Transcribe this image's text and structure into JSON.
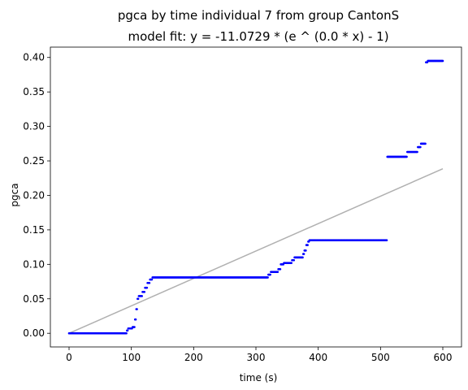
{
  "chart_data": {
    "type": "scatter",
    "title": "pgca by time individual 7 from group CantonS",
    "subtitle": "model fit: y = -11.0729 * (e ^ (0.0 * x) - 1)",
    "xlabel": "time (s)",
    "ylabel": "pgca",
    "xlim": [
      -30,
      630
    ],
    "ylim": [
      -0.0198,
      0.415
    ],
    "x_ticks": [
      0,
      100,
      200,
      300,
      400,
      500,
      600
    ],
    "y_ticks": [
      0.0,
      0.05,
      0.1,
      0.15,
      0.2,
      0.25,
      0.3,
      0.35,
      0.4
    ],
    "x_tick_labels": [
      "0",
      "100",
      "200",
      "300",
      "400",
      "500",
      "600"
    ],
    "y_tick_labels": [
      "0.00",
      "0.05",
      "0.10",
      "0.15",
      "0.20",
      "0.25",
      "0.30",
      "0.35",
      "0.40"
    ],
    "grid": false,
    "series": [
      {
        "kind": "points",
        "color": "#0000ff",
        "steps": [
          [
            0,
            0.0
          ],
          [
            93,
            0.004
          ],
          [
            95,
            0.007
          ],
          [
            102,
            0.009
          ],
          [
            106,
            0.02
          ],
          [
            108,
            0.035
          ],
          [
            110,
            0.05
          ],
          [
            112,
            0.054
          ],
          [
            118,
            0.06
          ],
          [
            122,
            0.066
          ],
          [
            126,
            0.073
          ],
          [
            130,
            0.078
          ],
          [
            134,
            0.081
          ],
          [
            320,
            0.085
          ],
          [
            324,
            0.089
          ],
          [
            336,
            0.093
          ],
          [
            340,
            0.1
          ],
          [
            345,
            0.102
          ],
          [
            358,
            0.106
          ],
          [
            362,
            0.11
          ],
          [
            376,
            0.115
          ],
          [
            378,
            0.12
          ],
          [
            381,
            0.128
          ],
          [
            384,
            0.133
          ],
          [
            386,
            0.135
          ],
          [
            511,
            0.256
          ],
          [
            543,
            0.263
          ],
          [
            560,
            0.27
          ],
          [
            565,
            0.275
          ],
          [
            573,
            0.393
          ],
          [
            576,
            0.395
          ],
          [
            600,
            0.395
          ]
        ],
        "gaps": [
          [
            510,
            511
          ],
          [
            572,
            573
          ]
        ]
      },
      {
        "kind": "fit_line",
        "color": "#b0b0b0",
        "x": [
          0,
          600
        ],
        "y": [
          0.0,
          0.2386
        ]
      }
    ]
  }
}
